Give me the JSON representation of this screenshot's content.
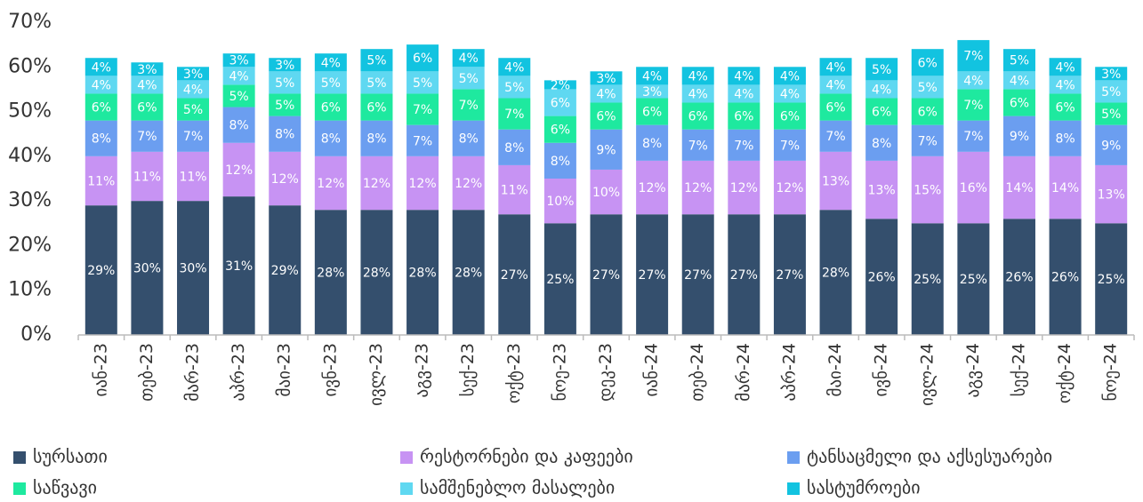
{
  "chart_data": {
    "type": "stacked_bar",
    "categories": [
      "იან-23",
      "თებ-23",
      "მარ-23",
      "აპრ-23",
      "მაი-23",
      "ივნ-23",
      "ივლ-23",
      "აგვ-23",
      "სექ-23",
      "ოქტ-23",
      "ნოე-23",
      "დეკ-23",
      "იან-24",
      "თებ-24",
      "მარ-24",
      "აპრ-24",
      "მაი-24",
      "ივნ-24",
      "ივლ-24",
      "აგვ-24",
      "სექ-24",
      "ოქტ-24",
      "ნოე-24"
    ],
    "series": [
      {
        "name": "სურსათი",
        "color": "#344f6d",
        "values": [
          29,
          30,
          30,
          31,
          29,
          28,
          28,
          28,
          28,
          27,
          25,
          27,
          27,
          27,
          27,
          27,
          28,
          26,
          25,
          25,
          26,
          26,
          25
        ],
        "value_labels": [
          "29%",
          "30%",
          "30%",
          "31%",
          "29%",
          "28%",
          "28%",
          "28%",
          "28%",
          "27%",
          "25%",
          "27%",
          "27%",
          "27%",
          "27%",
          "27%",
          "28%",
          "26%",
          "25%",
          "25%",
          "26%",
          "26%",
          "25%"
        ]
      },
      {
        "name": "რესტორნები და კაფეები",
        "color": "#c793f3",
        "values": [
          11,
          11,
          11,
          12,
          12,
          12,
          12,
          12,
          12,
          11,
          10,
          10,
          12,
          12,
          12,
          12,
          13,
          13,
          15,
          16,
          14,
          14,
          13
        ],
        "value_labels": [
          "11%",
          "11%",
          "11%",
          "12%",
          "12%",
          "12%",
          "12%",
          "12%",
          "12%",
          "11%",
          "10%",
          "10%",
          "12%",
          "12%",
          "12%",
          "12%",
          "13%",
          "13%",
          "15%",
          "16%",
          "14%",
          "14%",
          "13%"
        ]
      },
      {
        "name": "ტანსაცმელი და აქსესუარები",
        "color": "#6b9ef0",
        "values": [
          8,
          7,
          7,
          8,
          8,
          8,
          8,
          7,
          8,
          8,
          8,
          9,
          8,
          7,
          7,
          7,
          7,
          8,
          7,
          7,
          9,
          8,
          9
        ],
        "value_labels": [
          "8%",
          "7%",
          "7%",
          "8%",
          "8%",
          "8%",
          "8%",
          "7%",
          "8%",
          "8%",
          "8%",
          "9%",
          "8%",
          "7%",
          "7%",
          "7%",
          "7%",
          "8%",
          "7%",
          "7%",
          "9%",
          "8%",
          "9%"
        ]
      },
      {
        "name": "საწვავი",
        "color": "#1ee99f",
        "values": [
          6,
          6,
          5,
          5,
          5,
          6,
          6,
          7,
          7,
          7,
          6,
          6,
          6,
          6,
          6,
          6,
          6,
          6,
          6,
          7,
          6,
          6,
          5
        ],
        "value_labels": [
          "6%",
          "6%",
          "5%",
          "5%",
          "5%",
          "6%",
          "6%",
          "7%",
          "7%",
          "7%",
          "6%",
          "6%",
          "6%",
          "6%",
          "6%",
          "6%",
          "6%",
          "6%",
          "6%",
          "7%",
          "6%",
          "6%",
          "5%"
        ]
      },
      {
        "name": "სამშენებლო მასალები",
        "color": "#5fd8f1",
        "values": [
          4,
          4,
          4,
          4,
          5,
          5,
          5,
          5,
          5,
          5,
          6,
          4,
          3,
          4,
          4,
          4,
          4,
          4,
          5,
          4,
          4,
          4,
          5
        ],
        "value_labels": [
          "4%",
          "4%",
          "4%",
          "4%",
          "5%",
          "5%",
          "5%",
          "5%",
          "5%",
          "5%",
          "6%",
          "4%",
          "3%",
          "4%",
          "4%",
          "4%",
          "4%",
          "4%",
          "5%",
          "4%",
          "4%",
          "4%",
          "5%"
        ]
      },
      {
        "name": "სასტუმროები",
        "color": "#12c3e0",
        "values": [
          4,
          3,
          3,
          3,
          3,
          4,
          5,
          6,
          4,
          4,
          2,
          3,
          4,
          4,
          4,
          4,
          4,
          5,
          6,
          7,
          5,
          4,
          3
        ],
        "value_labels": [
          "4%",
          "3%",
          "3%",
          "3%",
          "3%",
          "4%",
          "5%",
          "6%",
          "4%",
          "4%",
          "2%",
          "3%",
          "4%",
          "4%",
          "4%",
          "4%",
          "4%",
          "5%",
          "6%",
          "7%",
          "5%",
          "4%",
          "3%"
        ]
      }
    ],
    "ylim": [
      0,
      70
    ],
    "yticks": [
      {
        "value": 0,
        "label": "0%"
      },
      {
        "value": 10,
        "label": "10%"
      },
      {
        "value": 20,
        "label": "20%"
      },
      {
        "value": 30,
        "label": "30%"
      },
      {
        "value": 40,
        "label": "40%"
      },
      {
        "value": 50,
        "label": "50%"
      },
      {
        "value": 60,
        "label": "60%"
      },
      {
        "value": 70,
        "label": "70%"
      }
    ],
    "grid": false
  }
}
